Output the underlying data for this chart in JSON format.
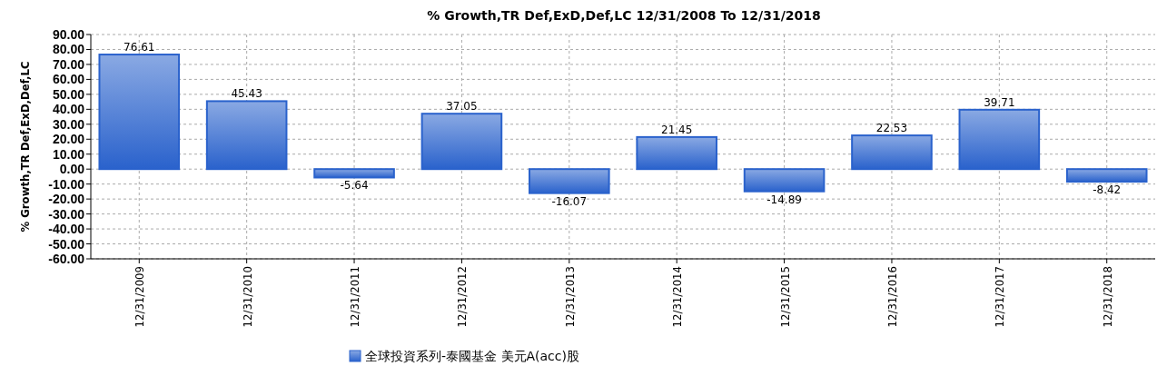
{
  "chart_data": {
    "type": "bar",
    "title": "% Growth,TR Def,ExD,Def,LC 12/31/2008 To 12/31/2018",
    "ylabel": "% Growth,TR Def,ExD,Def,LC",
    "categories": [
      "12/31/2009",
      "12/31/2010",
      "12/31/2011",
      "12/31/2012",
      "12/31/2013",
      "12/31/2014",
      "12/31/2015",
      "12/31/2016",
      "12/31/2017",
      "12/31/2018"
    ],
    "series": [
      {
        "name": "全球投資系列-泰國基金 美元A(acc)股",
        "color": "#2a62cc",
        "values": [
          76.61,
          45.43,
          -5.64,
          37.05,
          -16.07,
          21.45,
          -14.89,
          22.53,
          39.71,
          -8.42
        ]
      }
    ],
    "ylim": [
      -60,
      90
    ],
    "yticks": [
      {
        "value": -60,
        "label": "-60.00"
      },
      {
        "value": -50,
        "label": "-50.00"
      },
      {
        "value": -40,
        "label": "-40.00"
      },
      {
        "value": -30,
        "label": "-30.00"
      },
      {
        "value": -20,
        "label": "-20.00"
      },
      {
        "value": -10,
        "label": "-10.00"
      },
      {
        "value": 0,
        "label": "0.00"
      },
      {
        "value": 10,
        "label": "10.00"
      },
      {
        "value": 20,
        "label": "20.00"
      },
      {
        "value": 30,
        "label": "30.00"
      },
      {
        "value": 40,
        "label": "40.00"
      },
      {
        "value": 50,
        "label": "50.00"
      },
      {
        "value": 60,
        "label": "60.00"
      },
      {
        "value": 70,
        "label": "70.00"
      },
      {
        "value": 80,
        "label": "80.00"
      },
      {
        "value": 90,
        "label": "90.00"
      }
    ],
    "grid": true,
    "data_labels": true,
    "legend": "bottom"
  }
}
